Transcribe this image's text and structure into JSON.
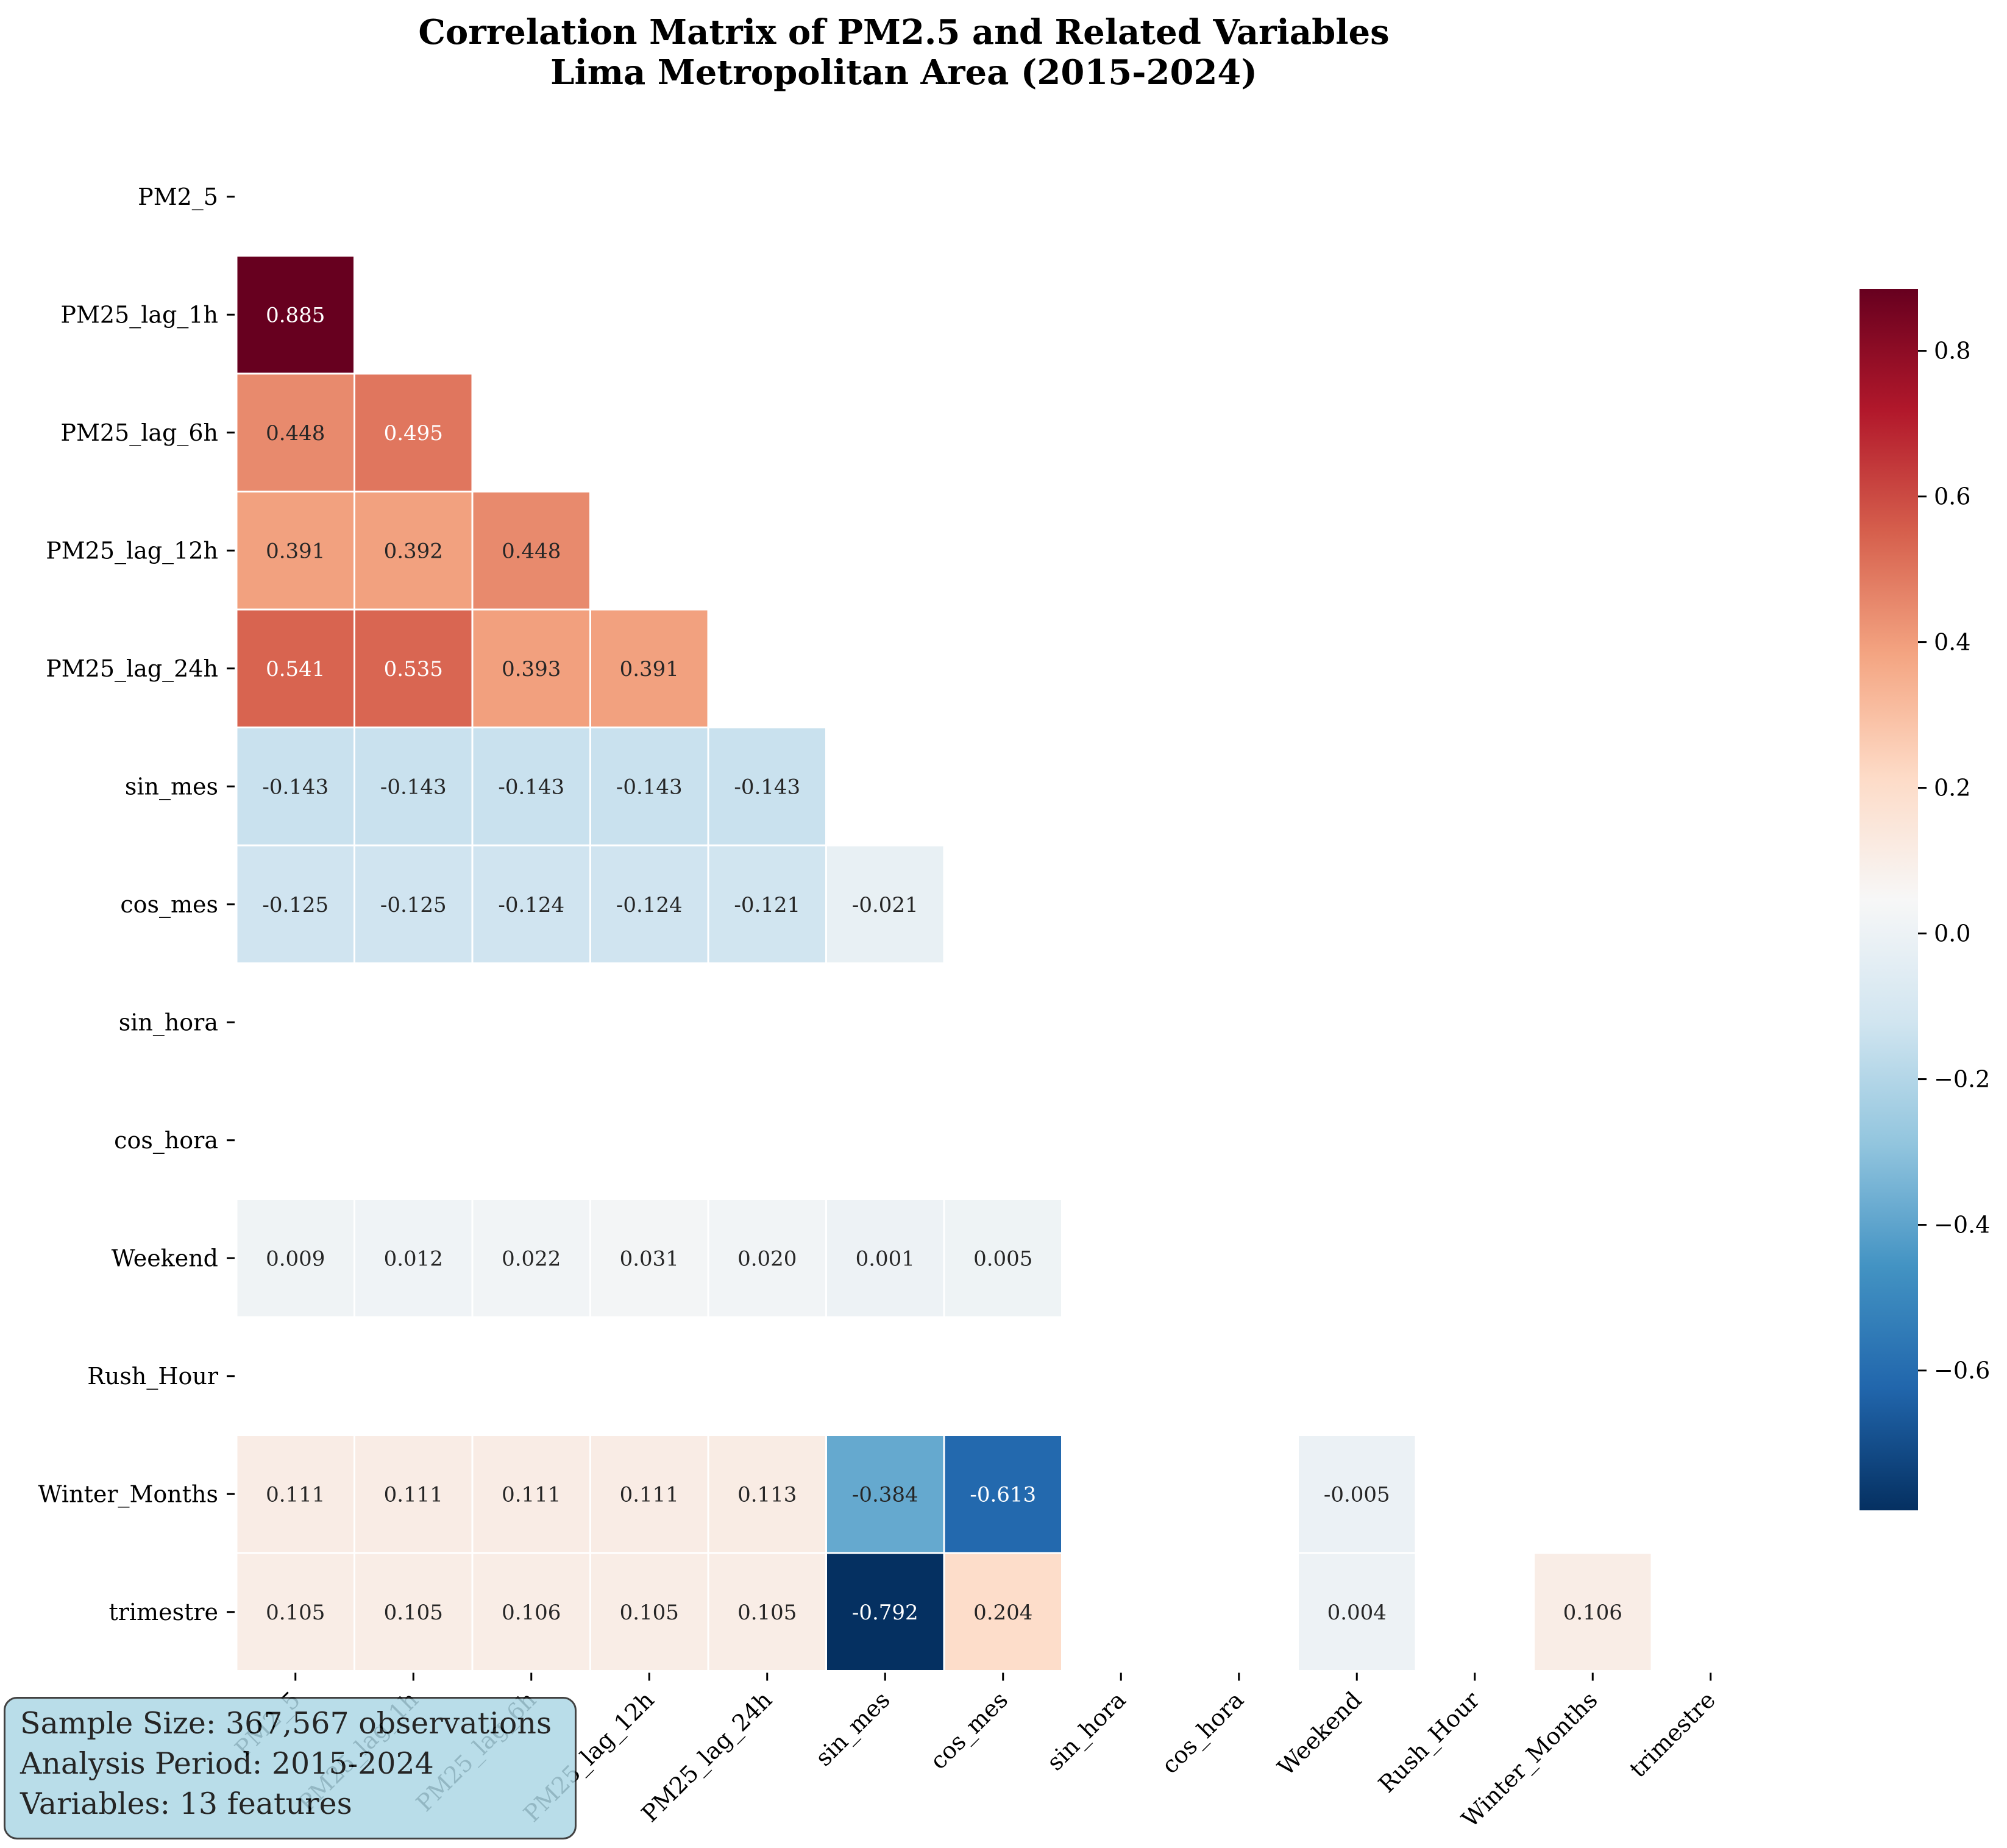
{
  "chart_data": {
    "type": "heatmap",
    "title_lines": [
      "Correlation Matrix of PM2.5 and Related Variables",
      "Lima Metropolitan Area (2015-2024)"
    ],
    "variables": [
      "PM2_5",
      "PM25_lag_1h",
      "PM25_lag_6h",
      "PM25_lag_12h",
      "PM25_lag_24h",
      "sin_mes",
      "cos_mes",
      "sin_hora",
      "cos_hora",
      "Weekend",
      "Rush_Hour",
      "Winter_Months",
      "trimestre"
    ],
    "mask": "upper-triangle-and-diagonal",
    "cells": [
      {
        "row": 1,
        "col": 0,
        "value": 0.885,
        "label": "0.885"
      },
      {
        "row": 2,
        "col": 0,
        "value": 0.448,
        "label": "0.448"
      },
      {
        "row": 2,
        "col": 1,
        "value": 0.495,
        "label": "0.495"
      },
      {
        "row": 3,
        "col": 0,
        "value": 0.391,
        "label": "0.391"
      },
      {
        "row": 3,
        "col": 1,
        "value": 0.392,
        "label": "0.392"
      },
      {
        "row": 3,
        "col": 2,
        "value": 0.448,
        "label": "0.448"
      },
      {
        "row": 4,
        "col": 0,
        "value": 0.541,
        "label": "0.541"
      },
      {
        "row": 4,
        "col": 1,
        "value": 0.535,
        "label": "0.535"
      },
      {
        "row": 4,
        "col": 2,
        "value": 0.393,
        "label": "0.393"
      },
      {
        "row": 4,
        "col": 3,
        "value": 0.391,
        "label": "0.391"
      },
      {
        "row": 5,
        "col": 0,
        "value": -0.143,
        "label": "-0.143"
      },
      {
        "row": 5,
        "col": 1,
        "value": -0.143,
        "label": "-0.143"
      },
      {
        "row": 5,
        "col": 2,
        "value": -0.143,
        "label": "-0.143"
      },
      {
        "row": 5,
        "col": 3,
        "value": -0.143,
        "label": "-0.143"
      },
      {
        "row": 5,
        "col": 4,
        "value": -0.143,
        "label": "-0.143"
      },
      {
        "row": 6,
        "col": 0,
        "value": -0.125,
        "label": "-0.125"
      },
      {
        "row": 6,
        "col": 1,
        "value": -0.125,
        "label": "-0.125"
      },
      {
        "row": 6,
        "col": 2,
        "value": -0.124,
        "label": "-0.124"
      },
      {
        "row": 6,
        "col": 3,
        "value": -0.124,
        "label": "-0.124"
      },
      {
        "row": 6,
        "col": 4,
        "value": -0.121,
        "label": "-0.121"
      },
      {
        "row": 6,
        "col": 5,
        "value": -0.021,
        "label": "-0.021"
      },
      {
        "row": 9,
        "col": 0,
        "value": 0.009,
        "label": "0.009"
      },
      {
        "row": 9,
        "col": 1,
        "value": 0.012,
        "label": "0.012"
      },
      {
        "row": 9,
        "col": 2,
        "value": 0.022,
        "label": "0.022"
      },
      {
        "row": 9,
        "col": 3,
        "value": 0.031,
        "label": "0.031"
      },
      {
        "row": 9,
        "col": 4,
        "value": 0.02,
        "label": "0.020"
      },
      {
        "row": 9,
        "col": 5,
        "value": 0.001,
        "label": "0.001"
      },
      {
        "row": 9,
        "col": 6,
        "value": 0.005,
        "label": "0.005"
      },
      {
        "row": 11,
        "col": 0,
        "value": 0.111,
        "label": "0.111"
      },
      {
        "row": 11,
        "col": 1,
        "value": 0.111,
        "label": "0.111"
      },
      {
        "row": 11,
        "col": 2,
        "value": 0.111,
        "label": "0.111"
      },
      {
        "row": 11,
        "col": 3,
        "value": 0.111,
        "label": "0.111"
      },
      {
        "row": 11,
        "col": 4,
        "value": 0.113,
        "label": "0.113"
      },
      {
        "row": 11,
        "col": 5,
        "value": -0.384,
        "label": "-0.384"
      },
      {
        "row": 11,
        "col": 6,
        "value": -0.613,
        "label": "-0.613"
      },
      {
        "row": 11,
        "col": 9,
        "value": -0.005,
        "label": "-0.005"
      },
      {
        "row": 12,
        "col": 0,
        "value": 0.105,
        "label": "0.105"
      },
      {
        "row": 12,
        "col": 1,
        "value": 0.105,
        "label": "0.105"
      },
      {
        "row": 12,
        "col": 2,
        "value": 0.106,
        "label": "0.106"
      },
      {
        "row": 12,
        "col": 3,
        "value": 0.105,
        "label": "0.105"
      },
      {
        "row": 12,
        "col": 4,
        "value": 0.105,
        "label": "0.105"
      },
      {
        "row": 12,
        "col": 5,
        "value": -0.792,
        "label": "-0.792"
      },
      {
        "row": 12,
        "col": 6,
        "value": 0.204,
        "label": "0.204"
      },
      {
        "row": 12,
        "col": 9,
        "value": 0.004,
        "label": "0.004"
      },
      {
        "row": 12,
        "col": 11,
        "value": 0.106,
        "label": "0.106"
      }
    ],
    "colormap": "RdBu_r",
    "vmin": -0.792,
    "vmax": 0.885,
    "colorbar_ticks": [
      0.8,
      0.6,
      0.4,
      0.2,
      0.0,
      -0.2,
      -0.4,
      -0.6
    ],
    "colorbar_tick_labels": [
      "0.8",
      "0.6",
      "0.4",
      "0.2",
      "0.0",
      "−0.2",
      "−0.4",
      "−0.6"
    ],
    "colors": {
      "text_light": "#ffffff",
      "text_dark": "#262626"
    }
  },
  "info_box": {
    "line1": "Sample Size: 367,567 observations",
    "line2": "Analysis Period: 2015-2024",
    "line3": "Variables: 13 features"
  }
}
